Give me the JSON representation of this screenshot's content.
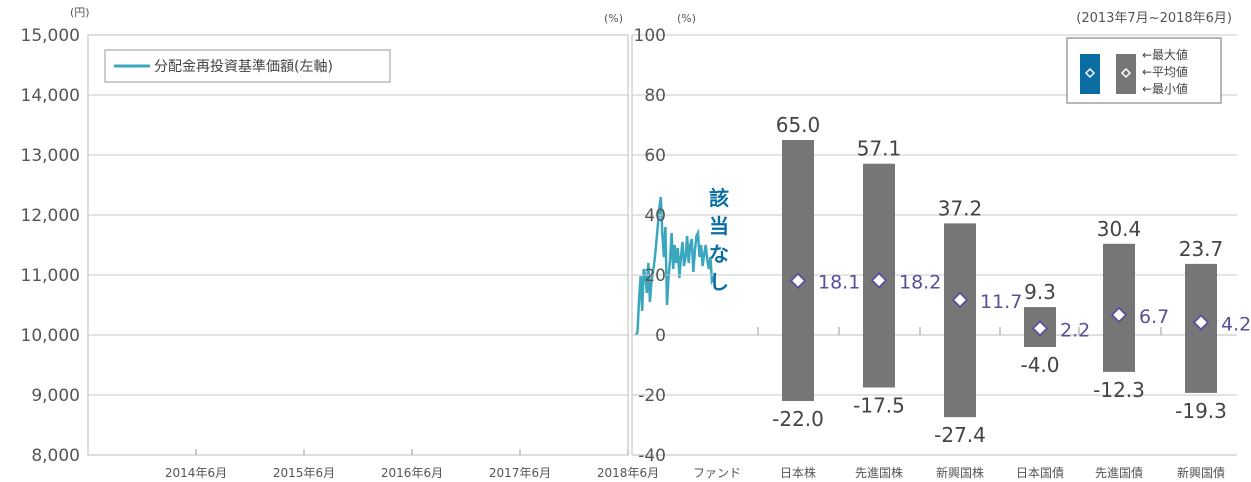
{
  "period_label": "(2013年7月~2018年6月)",
  "colors": {
    "line": "#3aa7bf",
    "bar": "#767676",
    "legend_box": "#0a6ea3",
    "grid": "#c8c8c8",
    "axis_text": "#555555",
    "value_text": "#5b4e9a",
    "no_data_text": "#0a6ea3"
  },
  "chart_data": [
    {
      "type": "line",
      "y_unit": "(円)",
      "ylim": [
        8000,
        15000
      ],
      "yticks": [
        "15,000",
        "14,000",
        "13,000",
        "12,000",
        "11,000",
        "10,000",
        "9,000",
        "8,000"
      ],
      "ytick_values": [
        15000,
        14000,
        13000,
        12000,
        11000,
        10000,
        9000,
        8000
      ],
      "x_categories": [
        "2014年6月",
        "2015年6月",
        "2016年6月",
        "2017年6月",
        "2018年6月"
      ],
      "legend": "分配金再投資基準価額(左軸)",
      "series": [
        {
          "name": "分配金再投資基準価額(左軸)",
          "x": [
            2017.75,
            2017.77,
            2017.79,
            2017.81,
            2017.83,
            2017.85,
            2017.87,
            2017.89,
            2017.91,
            2017.93,
            2017.95,
            2017.97,
            2017.99,
            2018.01,
            2018.03,
            2018.05,
            2018.07,
            2018.09,
            2018.11,
            2018.13,
            2018.15,
            2018.17,
            2018.19,
            2018.21,
            2018.23,
            2018.25,
            2018.27,
            2018.29,
            2018.31,
            2018.33,
            2018.35,
            2018.37,
            2018.39,
            2018.41,
            2018.43,
            2018.45,
            2018.47,
            2018.49,
            2018.51,
            2018.53,
            2018.55,
            2018.57,
            2018.59,
            2018.61,
            2018.63,
            2018.65,
            2018.67,
            2018.69,
            2018.71,
            2018.73,
            2018.75,
            2018.77
          ],
          "values": [
            10000,
            10050,
            10600,
            10980,
            10400,
            11100,
            11000,
            10700,
            11200,
            10550,
            10900,
            11050,
            11250,
            11500,
            11800,
            12100,
            12300,
            11700,
            11300,
            11800,
            10500,
            10950,
            11250,
            11700,
            11100,
            11500,
            11200,
            11450,
            10950,
            11300,
            11550,
            11150,
            11300,
            11650,
            11200,
            11500,
            11600,
            11050,
            11400,
            11650,
            11700,
            11300,
            11500,
            11150,
            11350,
            11500,
            11250,
            11100,
            11300,
            10900,
            10950,
            10800
          ]
        }
      ]
    },
    {
      "type": "bar",
      "y_unit": "(%)",
      "ylim": [
        -40,
        100
      ],
      "yticks": [
        "100",
        "80",
        "60",
        "40",
        "20",
        "0",
        "-20",
        "-40"
      ],
      "ytick_values": [
        100,
        80,
        60,
        40,
        20,
        0,
        -20,
        -40
      ],
      "categories": [
        "ファンド",
        "日本株",
        "先進国株",
        "新興国株",
        "日本国債",
        "先進国債",
        "新興国債"
      ],
      "no_data_label": "該当なし",
      "max_labels": [
        "",
        "65.0",
        "57.1",
        "37.2",
        "9.3",
        "30.4",
        "23.7"
      ],
      "avg_labels": [
        "",
        "18.1",
        "18.2",
        "11.7",
        "2.2",
        "6.7",
        "4.2"
      ],
      "min_labels": [
        "",
        "-22.0",
        "-17.5",
        "-27.4",
        "-4.0",
        "-12.3",
        "-19.3"
      ],
      "max": [
        null,
        65.0,
        57.1,
        37.2,
        9.3,
        30.4,
        23.7
      ],
      "avg": [
        null,
        18.1,
        18.2,
        11.7,
        2.2,
        6.7,
        4.2
      ],
      "min": [
        null,
        -22.0,
        -17.5,
        -27.4,
        -4.0,
        -12.3,
        -19.3
      ],
      "legend": {
        "max": "←最大値",
        "avg": "←平均値",
        "min": "←最小値"
      }
    }
  ]
}
